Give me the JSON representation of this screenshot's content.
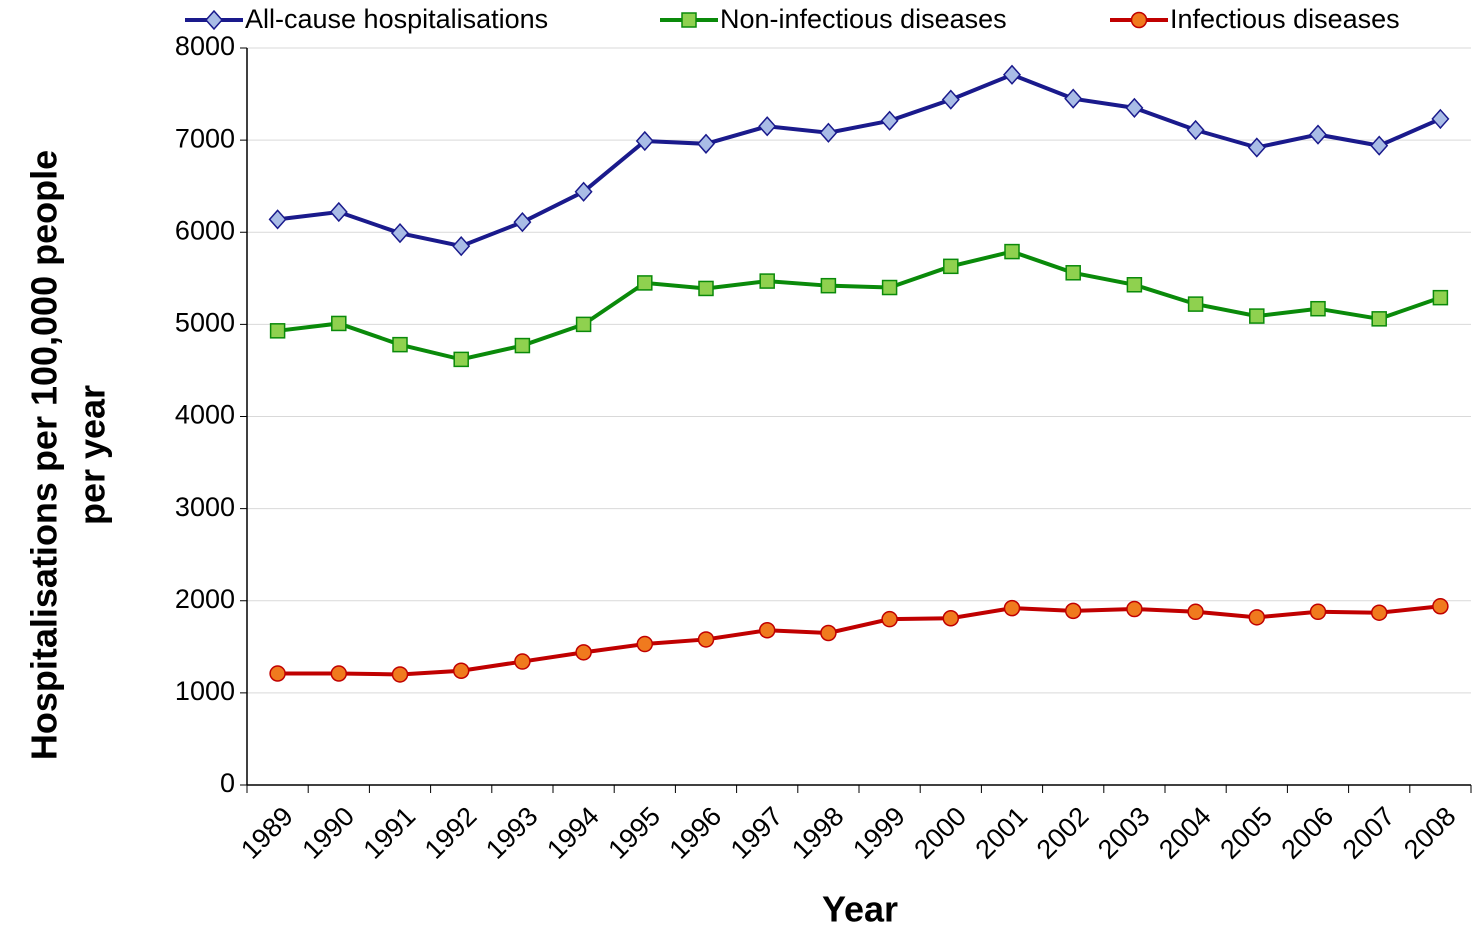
{
  "chart_data": {
    "type": "line",
    "x_label": "Year",
    "y_label": [
      "Hospitalisations per 100,000 people",
      "per year"
    ],
    "categories": [
      "1989",
      "1990",
      "1991",
      "1992",
      "1993",
      "1994",
      "1995",
      "1996",
      "1997",
      "1998",
      "1999",
      "2000",
      "2001",
      "2002",
      "2003",
      "2004",
      "2005",
      "2006",
      "2007",
      "2008"
    ],
    "series": [
      {
        "name": "All-cause hospitalisations",
        "color": "#1a1a8c",
        "marker": "diamond",
        "marker_color": "#a9bce6",
        "values": [
          6140,
          6220,
          5990,
          5850,
          6110,
          6440,
          6990,
          6960,
          7150,
          7080,
          7210,
          7440,
          7710,
          7450,
          7350,
          7110,
          6920,
          7060,
          6940,
          7230
        ]
      },
      {
        "name": "Non-infectious diseases",
        "color": "#0a8a0a",
        "marker": "square",
        "marker_color": "#8fd14f",
        "values": [
          4930,
          5010,
          4780,
          4620,
          4770,
          5000,
          5450,
          5390,
          5470,
          5420,
          5400,
          5630,
          5790,
          5560,
          5430,
          5220,
          5090,
          5170,
          5060,
          5290
        ]
      },
      {
        "name": "Infectious diseases",
        "color": "#c00000",
        "marker": "circle",
        "marker_color": "#f07a1e",
        "values": [
          1210,
          1210,
          1200,
          1240,
          1340,
          1440,
          1530,
          1580,
          1680,
          1650,
          1800,
          1810,
          1920,
          1890,
          1910,
          1880,
          1820,
          1880,
          1870,
          1940
        ]
      }
    ],
    "ylim": [
      0,
      8000
    ],
    "yticks": [
      0,
      1000,
      2000,
      3000,
      4000,
      5000,
      6000,
      7000,
      8000
    ],
    "grid": true,
    "legend": "top"
  }
}
